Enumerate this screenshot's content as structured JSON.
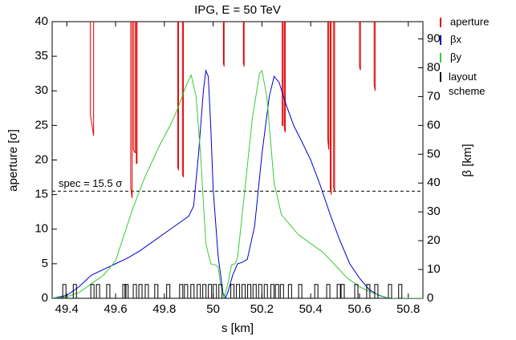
{
  "chart_data": {
    "type": "line",
    "title": "IPG, E = 50 TeV",
    "x_label": "s [km]",
    "y_label": "aperture [σ]",
    "y2_label": "β [km]",
    "annotation": "spec = 15.5 σ",
    "spec_line": 15.5,
    "xlim": [
      49.34,
      50.86
    ],
    "xticks": [
      49.4,
      49.6,
      49.8,
      50,
      50.2,
      50.4,
      50.6,
      50.8
    ],
    "ylim": [
      0,
      40
    ],
    "yticks": [
      0,
      5,
      10,
      15,
      20,
      25,
      30,
      35,
      40
    ],
    "y2lim": [
      0,
      96
    ],
    "y2ticks": [
      0,
      10,
      20,
      30,
      40,
      50,
      60,
      70,
      80,
      90
    ],
    "series": [
      {
        "name": "aperture",
        "color": "#e00000",
        "axis": "y",
        "x": [
          49.497,
          49.497,
          49.51,
          49.51,
          null,
          49.662,
          49.662,
          49.668,
          49.668,
          null,
          49.673,
          49.673,
          49.68,
          49.68,
          null,
          49.685,
          49.685,
          49.688,
          49.688,
          null,
          49.855,
          49.855,
          49.858,
          49.858,
          null,
          49.874,
          49.874,
          49.878,
          49.878,
          null,
          50.042,
          50.042,
          50.045,
          50.045,
          null,
          50.124,
          50.124,
          50.127,
          50.127,
          null,
          50.283,
          50.283,
          50.287,
          50.287,
          null,
          50.292,
          50.292,
          50.296,
          50.296,
          null,
          50.47,
          50.47,
          50.474,
          50.474,
          null,
          50.48,
          50.48,
          50.484,
          50.484,
          null,
          50.494,
          50.494,
          50.498,
          50.498,
          null,
          50.6,
          50.6,
          50.604,
          50.604,
          null,
          50.66,
          50.66,
          50.664,
          50.664
        ],
        "values": [
          40,
          26.5,
          23.5,
          40,
          null,
          40,
          16,
          14.5,
          40,
          null,
          40,
          21.5,
          21,
          40,
          null,
          40,
          19.5,
          19.5,
          40,
          null,
          40,
          19,
          18.5,
          40,
          null,
          40,
          18,
          17.5,
          40,
          null,
          40,
          34,
          33.5,
          40,
          null,
          40,
          34,
          33.5,
          40,
          null,
          40,
          25,
          25,
          40,
          null,
          40,
          24.5,
          24,
          40,
          null,
          40,
          23,
          21.5,
          40,
          null,
          40,
          16,
          15,
          40,
          null,
          40,
          16,
          15.5,
          40,
          null,
          40,
          33.5,
          33,
          40,
          null,
          40,
          31,
          30,
          40
        ]
      },
      {
        "name": "βx",
        "color": "#0000cc",
        "axis": "y2",
        "x": [
          49.34,
          49.4,
          49.45,
          49.5,
          49.55,
          49.6,
          49.65,
          49.7,
          49.75,
          49.8,
          49.85,
          49.9,
          49.92,
          49.94,
          49.96,
          49.97,
          49.98,
          49.99,
          50.0,
          50.02,
          50.04,
          50.05,
          50.06,
          50.08,
          50.1,
          50.12,
          50.14,
          50.17,
          50.2,
          50.23,
          50.25,
          50.27,
          50.3,
          50.33,
          50.36,
          50.4,
          50.44,
          50.48,
          50.52,
          50.56,
          50.6,
          50.64,
          50.68,
          50.72,
          50.86
        ],
        "values": [
          0,
          1,
          4,
          8,
          10,
          12,
          14,
          16.5,
          19.5,
          22.5,
          25.5,
          28.5,
          32,
          50,
          72,
          79,
          77,
          60,
          38,
          15,
          2,
          0,
          2,
          8,
          12,
          12.5,
          13.5,
          25,
          50,
          70,
          77,
          75,
          67,
          60,
          55,
          48,
          39,
          29,
          20,
          12,
          7,
          3,
          1,
          0,
          0
        ]
      },
      {
        "name": "βy",
        "color": "#33cc33",
        "axis": "y2",
        "x": [
          49.34,
          49.4,
          49.45,
          49.5,
          49.55,
          49.6,
          49.67,
          49.72,
          49.78,
          49.83,
          49.86,
          49.89,
          49.91,
          49.93,
          49.95,
          49.97,
          49.99,
          50.01,
          50.02,
          50.03,
          50.045,
          50.06,
          50.075,
          50.09,
          50.1,
          50.128,
          50.16,
          50.19,
          50.2,
          50.22,
          50.25,
          50.28,
          50.35,
          50.45,
          50.55,
          50.6,
          50.65,
          50.72,
          50.86
        ],
        "values": [
          0,
          0.5,
          2,
          5,
          8,
          13,
          31,
          42,
          53,
          61,
          67,
          74,
          77.5,
          70,
          48,
          19,
          12,
          11.5,
          11,
          5,
          0,
          5,
          11.5,
          12,
          14,
          36,
          62,
          78,
          79,
          70,
          40,
          29,
          22,
          16,
          7,
          4,
          2,
          0,
          0
        ]
      },
      {
        "name": "layout scheme",
        "color": "#000000",
        "axis": "y",
        "x": [
          49.39,
          49.433,
          49.505,
          49.528,
          49.57,
          49.636,
          49.645,
          49.679,
          49.702,
          49.728,
          49.767,
          49.816,
          49.869,
          49.889,
          49.915,
          49.941,
          49.964,
          49.987,
          50.007,
          50.03,
          50.079,
          50.102,
          50.125,
          50.148,
          50.17,
          50.193,
          50.216,
          50.243,
          50.262,
          50.282,
          50.315,
          50.357,
          50.423,
          50.472,
          50.515,
          50.531,
          50.587,
          50.636,
          50.669,
          50.725,
          50.767
        ],
        "values": [
          2,
          2,
          2,
          2,
          2,
          2,
          2,
          2,
          2,
          2,
          2,
          2,
          2,
          2,
          2,
          2,
          2,
          2,
          2,
          2,
          2,
          2,
          2,
          2,
          2,
          2,
          2,
          2,
          2,
          2,
          2,
          2,
          2,
          2,
          2,
          2,
          2,
          2,
          2,
          2,
          2
        ]
      }
    ]
  }
}
